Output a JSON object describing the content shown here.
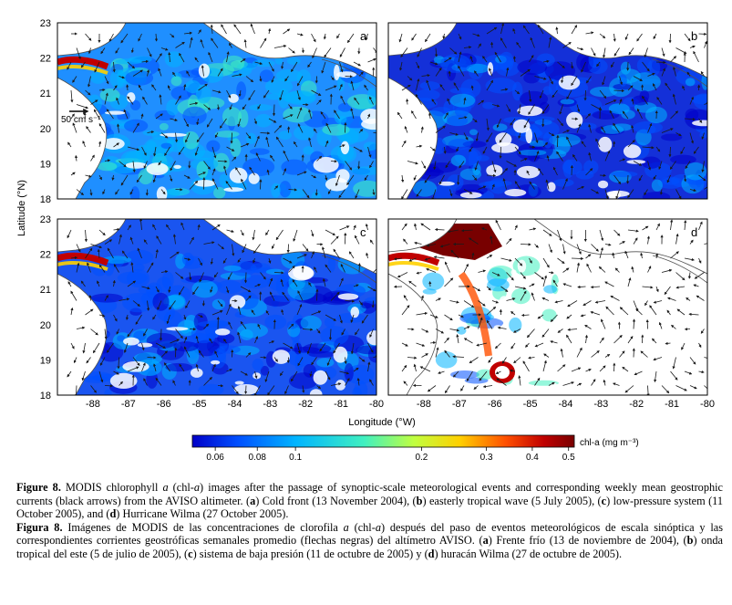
{
  "figure": {
    "y_axis_title": "Latitude (°N)",
    "x_axis_title": "Longitude (°W)",
    "y_ticks": [
      "23",
      "22",
      "21",
      "20",
      "19",
      "18"
    ],
    "x_ticks": [
      "-88",
      "-87",
      "-86",
      "-85",
      "-84",
      "-83",
      "-82",
      "-81",
      "-80"
    ],
    "panels": [
      {
        "letter": "a",
        "scale_label": "50 cm s⁻¹"
      },
      {
        "letter": "b"
      },
      {
        "letter": "c"
      },
      {
        "letter": "d"
      }
    ],
    "colorbar": {
      "label": "chl-a (mg m⁻³)",
      "ticks": [
        "0.06",
        "0.08",
        "0.1",
        "0.2",
        "0.3",
        "0.4",
        "0.5"
      ],
      "colors": [
        "#0000c8",
        "#0050ff",
        "#00b4ff",
        "#40f0c0",
        "#c0ff40",
        "#ffd000",
        "#ff5000",
        "#c00000",
        "#780000"
      ]
    },
    "colors": {
      "land": "#ffffff",
      "coast": "#505050",
      "cloud": "#ffffff",
      "arrow": "#1a1a1a"
    }
  },
  "caption": {
    "en_label": "Figure 8.",
    "en_text_1": " MODIS chlorophyll ",
    "en_text_2": "a",
    "en_text_3": " (chl-",
    "en_text_4": "a",
    "en_text_5": ") images after the passage of synoptic-scale meteorological events and corresponding weekly mean geostrophic currents (black arrows) from the AVISO altimeter. (",
    "en_a": "a",
    "en_text_6": ") Cold front (13 November 2004), (",
    "en_b": "b",
    "en_text_7": ") easterly tropical wave (5 July 2005), (",
    "en_c": "c",
    "en_text_8": ") low-pressure system (11 October 2005), and (",
    "en_d": "d",
    "en_text_9": ") Hurricane Wilma (27 October 2005).",
    "es_label": "Figura 8.",
    "es_text_1": " Imágenes de MODIS de las concentraciones de clorofila ",
    "es_text_2": "a",
    "es_text_3": " (chl-",
    "es_text_4": "a",
    "es_text_5": ") después del paso de eventos meteorológicos de escala sinóptica y las correspondientes corrientes geostróficas semanales promedio (flechas negras) del altímetro AVISO. (",
    "es_a": "a",
    "es_text_6": ") Frente frío (13 de noviembre de 2004), (",
    "es_b": "b",
    "es_text_7": ") onda tropical del este (5 de julio de 2005), (",
    "es_c": "c",
    "es_text_8": ") sistema de baja presión (11 de octubre de 2005) y (",
    "es_d": "d",
    "es_text_9": ") huracán Wilma (27 de octubre de 2005)."
  }
}
